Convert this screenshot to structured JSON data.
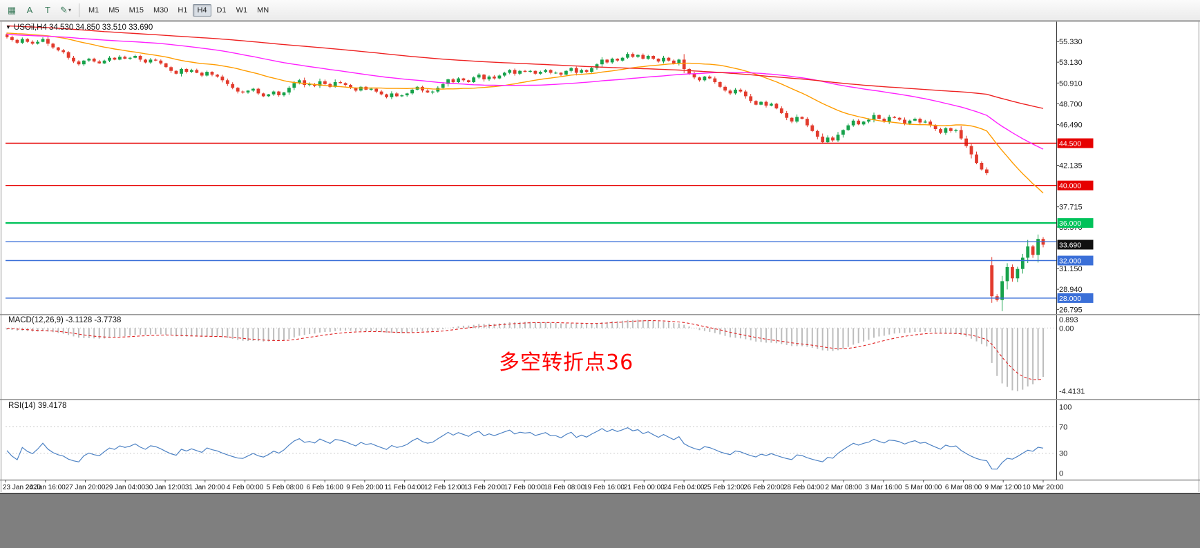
{
  "toolbar": {
    "tools": [
      {
        "name": "chart-grid-tool",
        "glyph": "▦"
      },
      {
        "name": "text-tool",
        "glyph": "A"
      },
      {
        "name": "text-label-tool",
        "glyph": "T"
      },
      {
        "name": "draw-tool",
        "glyph": "✎",
        "dropdown": "▾"
      }
    ],
    "timeframes": [
      "M1",
      "M5",
      "M15",
      "M30",
      "H1",
      "H4",
      "D1",
      "W1",
      "MN"
    ],
    "active_timeframe": "H4"
  },
  "chart": {
    "symbol_ohlc": "USOil,H4  34.530 34.850 33.510 33.690"
  },
  "chart_data": {
    "type": "candlestick",
    "symbol": "USOil",
    "timeframe": "H4",
    "open": "34.530",
    "high": "34.850",
    "low": "33.510",
    "close": "33.690",
    "closes": [
      55.8,
      55.5,
      55.2,
      55.6,
      55.3,
      55.1,
      55.3,
      55.6,
      55.1,
      54.7,
      54.4,
      54.2,
      53.6,
      53.2,
      52.9,
      53.3,
      53.5,
      53.2,
      53.0,
      53.3,
      53.6,
      53.4,
      53.7,
      53.5,
      53.6,
      53.8,
      53.4,
      53.1,
      53.4,
      53.3,
      53.0,
      52.6,
      52.2,
      51.9,
      52.4,
      52.1,
      52.3,
      52.0,
      51.7,
      52.1,
      51.8,
      51.6,
      51.2,
      50.8,
      50.4,
      50.0,
      49.9,
      50.1,
      50.3,
      49.8,
      49.5,
      49.7,
      50.0,
      49.6,
      49.9,
      50.4,
      50.9,
      51.2,
      50.7,
      50.8,
      50.6,
      51.1,
      50.8,
      50.5,
      51.0,
      50.9,
      50.7,
      50.4,
      50.1,
      50.5,
      50.2,
      50.3,
      50.0,
      49.7,
      49.4,
      49.8,
      49.5,
      49.6,
      49.8,
      50.2,
      50.5,
      50.1,
      49.9,
      50.0,
      50.4,
      50.8,
      51.3,
      51.0,
      51.4,
      51.2,
      51.0,
      51.5,
      51.8,
      51.3,
      51.6,
      51.4,
      51.7,
      52.0,
      52.3,
      51.9,
      52.2,
      52.1,
      52.2,
      51.9,
      52.1,
      52.3,
      52.0,
      52.0,
      51.8,
      52.2,
      52.5,
      52.0,
      52.3,
      52.1,
      52.5,
      52.9,
      53.4,
      53.1,
      53.5,
      53.3,
      53.6,
      54.0,
      53.7,
      53.9,
      53.5,
      53.8,
      53.5,
      53.2,
      53.6,
      53.3,
      53.0,
      53.4,
      52.4,
      51.9,
      51.5,
      51.2,
      51.6,
      51.4,
      51.0,
      50.5,
      50.1,
      49.8,
      50.2,
      50.0,
      49.5,
      49.0,
      48.6,
      48.9,
      48.5,
      48.7,
      48.2,
      47.7,
      47.2,
      46.8,
      47.3,
      47.1,
      46.4,
      45.8,
      45.2,
      44.6,
      45.1,
      44.8,
      45.4,
      45.9,
      46.4,
      46.9,
      46.5,
      46.8,
      47.0,
      47.5,
      47.1,
      46.8,
      47.3,
      47.2,
      47.0,
      46.6,
      46.9,
      47.1,
      46.7,
      46.8,
      46.4,
      46.0,
      45.6,
      46.1,
      45.8,
      45.9,
      45.0,
      44.2,
      43.3,
      42.4,
      41.7,
      41.3,
      28.2,
      27.8,
      29.8,
      31.3,
      30.1,
      31.1,
      32.3,
      33.5,
      32.6,
      34.3,
      33.69
    ],
    "time_labels": [
      "23 Jan 2020",
      "24 Jan 16:00",
      "27 Jan 20:00",
      "29 Jan 04:00",
      "30 Jan 12:00",
      "31 Jan 20:00",
      "4 Feb 00:00",
      "5 Feb 08:00",
      "6 Feb 16:00",
      "9 Feb 20:00",
      "11 Feb 04:00",
      "12 Feb 12:00",
      "13 Feb 20:00",
      "17 Feb 00:00",
      "18 Feb 08:00",
      "19 Feb 16:00",
      "21 Feb 00:00",
      "24 Feb 04:00",
      "25 Feb 12:00",
      "26 Feb 20:00",
      "28 Feb 04:00",
      "2 Mar 08:00",
      "3 Mar 16:00",
      "5 Mar 00:00",
      "6 Mar 08:00",
      "9 Mar 12:00",
      "10 Mar 20:00"
    ],
    "price_range": [
      26.3,
      57.4
    ],
    "price_ticks": [
      {
        "value": 55.33,
        "label": "55.330"
      },
      {
        "value": 53.13,
        "label": "53.130"
      },
      {
        "value": 50.91,
        "label": "50.910"
      },
      {
        "value": 48.7,
        "label": "48.700"
      },
      {
        "value": 46.49,
        "label": "46.490"
      },
      {
        "value": 42.135,
        "label": "42.135"
      },
      {
        "value": 37.715,
        "label": "37.715"
      },
      {
        "value": 35.57,
        "label": "35.570"
      },
      {
        "value": 31.15,
        "label": "31.150"
      },
      {
        "value": 28.94,
        "label": "28.940"
      },
      {
        "value": 26.795,
        "label": "26.795"
      }
    ],
    "hlines": [
      {
        "value": 44.5,
        "label": "44.500",
        "color": "#e60000",
        "tag": true,
        "width": 1.4
      },
      {
        "value": 40.0,
        "label": "40.000",
        "color": "#e60000",
        "tag": true,
        "width": 1.4
      },
      {
        "value": 36.0,
        "label": "36.000",
        "color": "#00c25a",
        "tag": true,
        "width": 2.4
      },
      {
        "value": 34.0,
        "label": "34.000",
        "color": "#3a6fd8",
        "tag": false,
        "width": 1.4
      },
      {
        "value": 32.0,
        "label": "32.000",
        "color": "#3a6fd8",
        "tag": true,
        "width": 1.4
      },
      {
        "value": 28.0,
        "label": "28.000",
        "color": "#3a6fd8",
        "tag": true,
        "width": 1.4
      }
    ],
    "current_price": {
      "value": 33.69,
      "label": "33.690",
      "bg": "#101010"
    },
    "moving_averages": [
      {
        "period": 26,
        "color": "#ff9c00"
      },
      {
        "period": 62,
        "color": "#ff22ff"
      },
      {
        "period": 140,
        "color": "#ee2222"
      }
    ],
    "candle_colors": {
      "up": "#17a24b",
      "down": "#e23b2d"
    },
    "indicators": {
      "macd": {
        "label": "MACD(12,26,9) -3.1128 -3.7738",
        "fast": 12,
        "slow": 26,
        "signal": 9,
        "main_value": "-3.1128",
        "signal_value": "-3.7738",
        "scale_labels": {
          "max": "0.893",
          "zero": "0.00",
          "min": "-4.4131"
        },
        "histogram_color": "#bdbdbd",
        "signal_color": "#e02020"
      },
      "rsi": {
        "label": "RSI(14) 39.4178",
        "period": 14,
        "value": "39.4178",
        "scale_labels": [
          "100",
          "70",
          "30",
          "0"
        ],
        "levels": [
          70,
          30
        ],
        "line_color": "#4d82c4",
        "level_color": "#c9c9c9"
      }
    },
    "annotation": {
      "text": "多空转折点36",
      "color": "#ff0000"
    }
  }
}
